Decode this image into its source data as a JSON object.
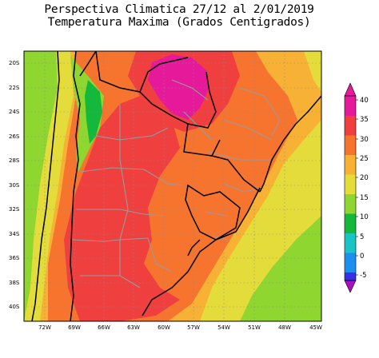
{
  "title": {
    "line1": "Perspectiva Climatica 27/12 al 2/01/2019",
    "line2": "Temperatura Maxima (Grados Centigrados)"
  },
  "map": {
    "lat_labels": [
      "20S",
      "22S",
      "24S",
      "26S",
      "28S",
      "30S",
      "32S",
      "34S",
      "36S",
      "38S",
      "40S"
    ],
    "lon_labels": [
      "72W",
      "69W",
      "66W",
      "63W",
      "60W",
      "57W",
      "54W",
      "51W",
      "48W",
      "45W"
    ]
  },
  "colorbar": {
    "tick_labels": [
      "-5",
      "0",
      "5",
      "10",
      "15",
      "20",
      "25",
      "30",
      "35",
      "40"
    ],
    "colors": {
      "c_lt_m5": "#a80fbf",
      "c_m5_0": "#3a2de8",
      "c_0_5": "#1c8ef0",
      "c_5_10": "#18c4c4",
      "c_10_15": "#14b83a",
      "c_15_20": "#8fd630",
      "c_20_25": "#e4dc3a",
      "c_25_30": "#f7b235",
      "c_30_35": "#f7742f",
      "c_35_40": "#f03f3f",
      "c_gt_40": "#e6199a"
    }
  }
}
